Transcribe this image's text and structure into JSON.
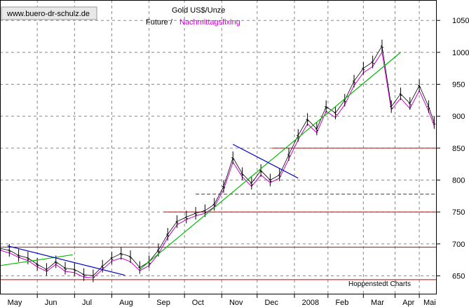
{
  "source": "www.buero-dr-schulz.de",
  "title": "Gold US$/Unze",
  "legend": [
    {
      "label": "Future /",
      "color": "#000000"
    },
    {
      "label": "Nachmittagsfixing",
      "color": "#cc00cc"
    }
  ],
  "footer": "Hoppenstedt Charts",
  "chart_data": {
    "type": "line",
    "title": "Gold US$/Unze",
    "xlabel": "",
    "ylabel": "",
    "ylim": [
      622,
      1082
    ],
    "xlim": [
      0,
      23.4
    ],
    "grid": true,
    "legend_position": "top-center",
    "x_tick_labels": [
      {
        "label": "May",
        "pos": 1.0
      },
      {
        "label": "Jun",
        "pos": 3.0
      },
      {
        "label": "Jul",
        "pos": 5.0
      },
      {
        "label": "Aug",
        "pos": 7.0
      },
      {
        "label": "Sep",
        "pos": 9.0
      },
      {
        "label": "Oct",
        "pos": 10.9
      },
      {
        "label": "Nov",
        "pos": 12.9
      },
      {
        "label": "Dec",
        "pos": 14.8
      },
      {
        "label": "2008",
        "pos": 16.8
      },
      {
        "label": "Feb",
        "pos": 18.6
      },
      {
        "label": "Mar",
        "pos": 20.5
      },
      {
        "label": "Apr",
        "pos": 22.2
      },
      {
        "label": "Mai",
        "pos": 23.5
      }
    ],
    "y_ticks": [
      650,
      700,
      750,
      800,
      850,
      900,
      950,
      1000,
      1050
    ],
    "series": [
      {
        "name": "Future",
        "color": "#000000",
        "x": [
          0.0,
          0.5,
          1.0,
          1.5,
          2.0,
          2.5,
          3.0,
          3.5,
          4.0,
          4.5,
          5.0,
          5.5,
          6.0,
          6.5,
          7.0,
          7.5,
          8.0,
          8.5,
          9.0,
          9.5,
          10.0,
          10.5,
          11.0,
          11.5,
          12.0,
          12.5,
          13.0,
          13.5,
          14.0,
          14.5,
          15.0,
          15.5,
          16.0,
          16.5,
          17.0,
          17.5,
          18.0,
          18.5,
          19.0,
          19.5,
          20.0,
          20.5,
          21.0,
          21.5,
          22.0,
          22.5,
          23.0,
          23.3
        ],
        "y": [
          693,
          690,
          682,
          678,
          668,
          660,
          672,
          662,
          660,
          652,
          650,
          665,
          678,
          685,
          680,
          663,
          672,
          690,
          715,
          735,
          742,
          748,
          752,
          762,
          790,
          835,
          810,
          795,
          815,
          800,
          808,
          840,
          870,
          895,
          880,
          915,
          905,
          925,
          955,
          975,
          985,
          1010,
          915,
          935,
          920,
          948,
          915,
          890
        ]
      },
      {
        "name": "Nachmittagsfixing",
        "color": "#cc00cc",
        "x": [
          0.0,
          0.5,
          1.0,
          1.5,
          2.0,
          2.5,
          3.0,
          3.5,
          4.0,
          4.5,
          5.0,
          5.5,
          6.0,
          6.5,
          7.0,
          7.5,
          8.0,
          8.5,
          9.0,
          9.5,
          10.0,
          10.5,
          11.0,
          11.5,
          12.0,
          12.5,
          13.0,
          13.5,
          14.0,
          14.5,
          15.0,
          15.5,
          16.0,
          16.5,
          17.0,
          17.5,
          18.0,
          18.5,
          19.0,
          19.5,
          20.0,
          20.5,
          21.0,
          21.5,
          22.0,
          22.5,
          23.0,
          23.3
        ],
        "y": [
          690,
          686,
          679,
          674,
          664,
          657,
          668,
          657,
          655,
          648,
          647,
          660,
          673,
          678,
          672,
          658,
          666,
          684,
          710,
          730,
          738,
          744,
          748,
          758,
          785,
          828,
          805,
          790,
          808,
          796,
          803,
          833,
          863,
          888,
          874,
          908,
          898,
          918,
          948,
          968,
          978,
          1000,
          910,
          928,
          912,
          940,
          908,
          885
        ]
      }
    ],
    "horizontal_lines": [
      {
        "y": 850,
        "style": "solid",
        "color": "#cc0000",
        "x_from": 14.6,
        "x_to": 23.4
      },
      {
        "y": 778,
        "style": "dashed",
        "color": "#cc0000",
        "x_from": 10.5,
        "x_to": 23.4
      },
      {
        "y": 750,
        "style": "solid",
        "color": "#cc0000",
        "x_from": 8.8,
        "x_to": 23.4
      },
      {
        "y": 695,
        "style": "solid",
        "color": "#cc0000",
        "x_from": 0.0,
        "x_to": 23.4
      },
      {
        "y": 644,
        "style": "solid",
        "color": "#cc0000",
        "x_from": 0.0,
        "x_to": 23.4
      }
    ],
    "trend_lines": [
      {
        "color": "#00bb00",
        "x1": 0.0,
        "y1": 666,
        "x2": 3.9,
        "y2": 683
      },
      {
        "color": "#0000cc",
        "x1": 0.4,
        "y1": 697,
        "x2": 6.7,
        "y2": 651
      },
      {
        "color": "#00bb00",
        "x1": 7.5,
        "y1": 660,
        "x2": 21.5,
        "y2": 1000
      },
      {
        "color": "#0000cc",
        "x1": 12.5,
        "y1": 856,
        "x2": 16.0,
        "y2": 803
      }
    ]
  }
}
